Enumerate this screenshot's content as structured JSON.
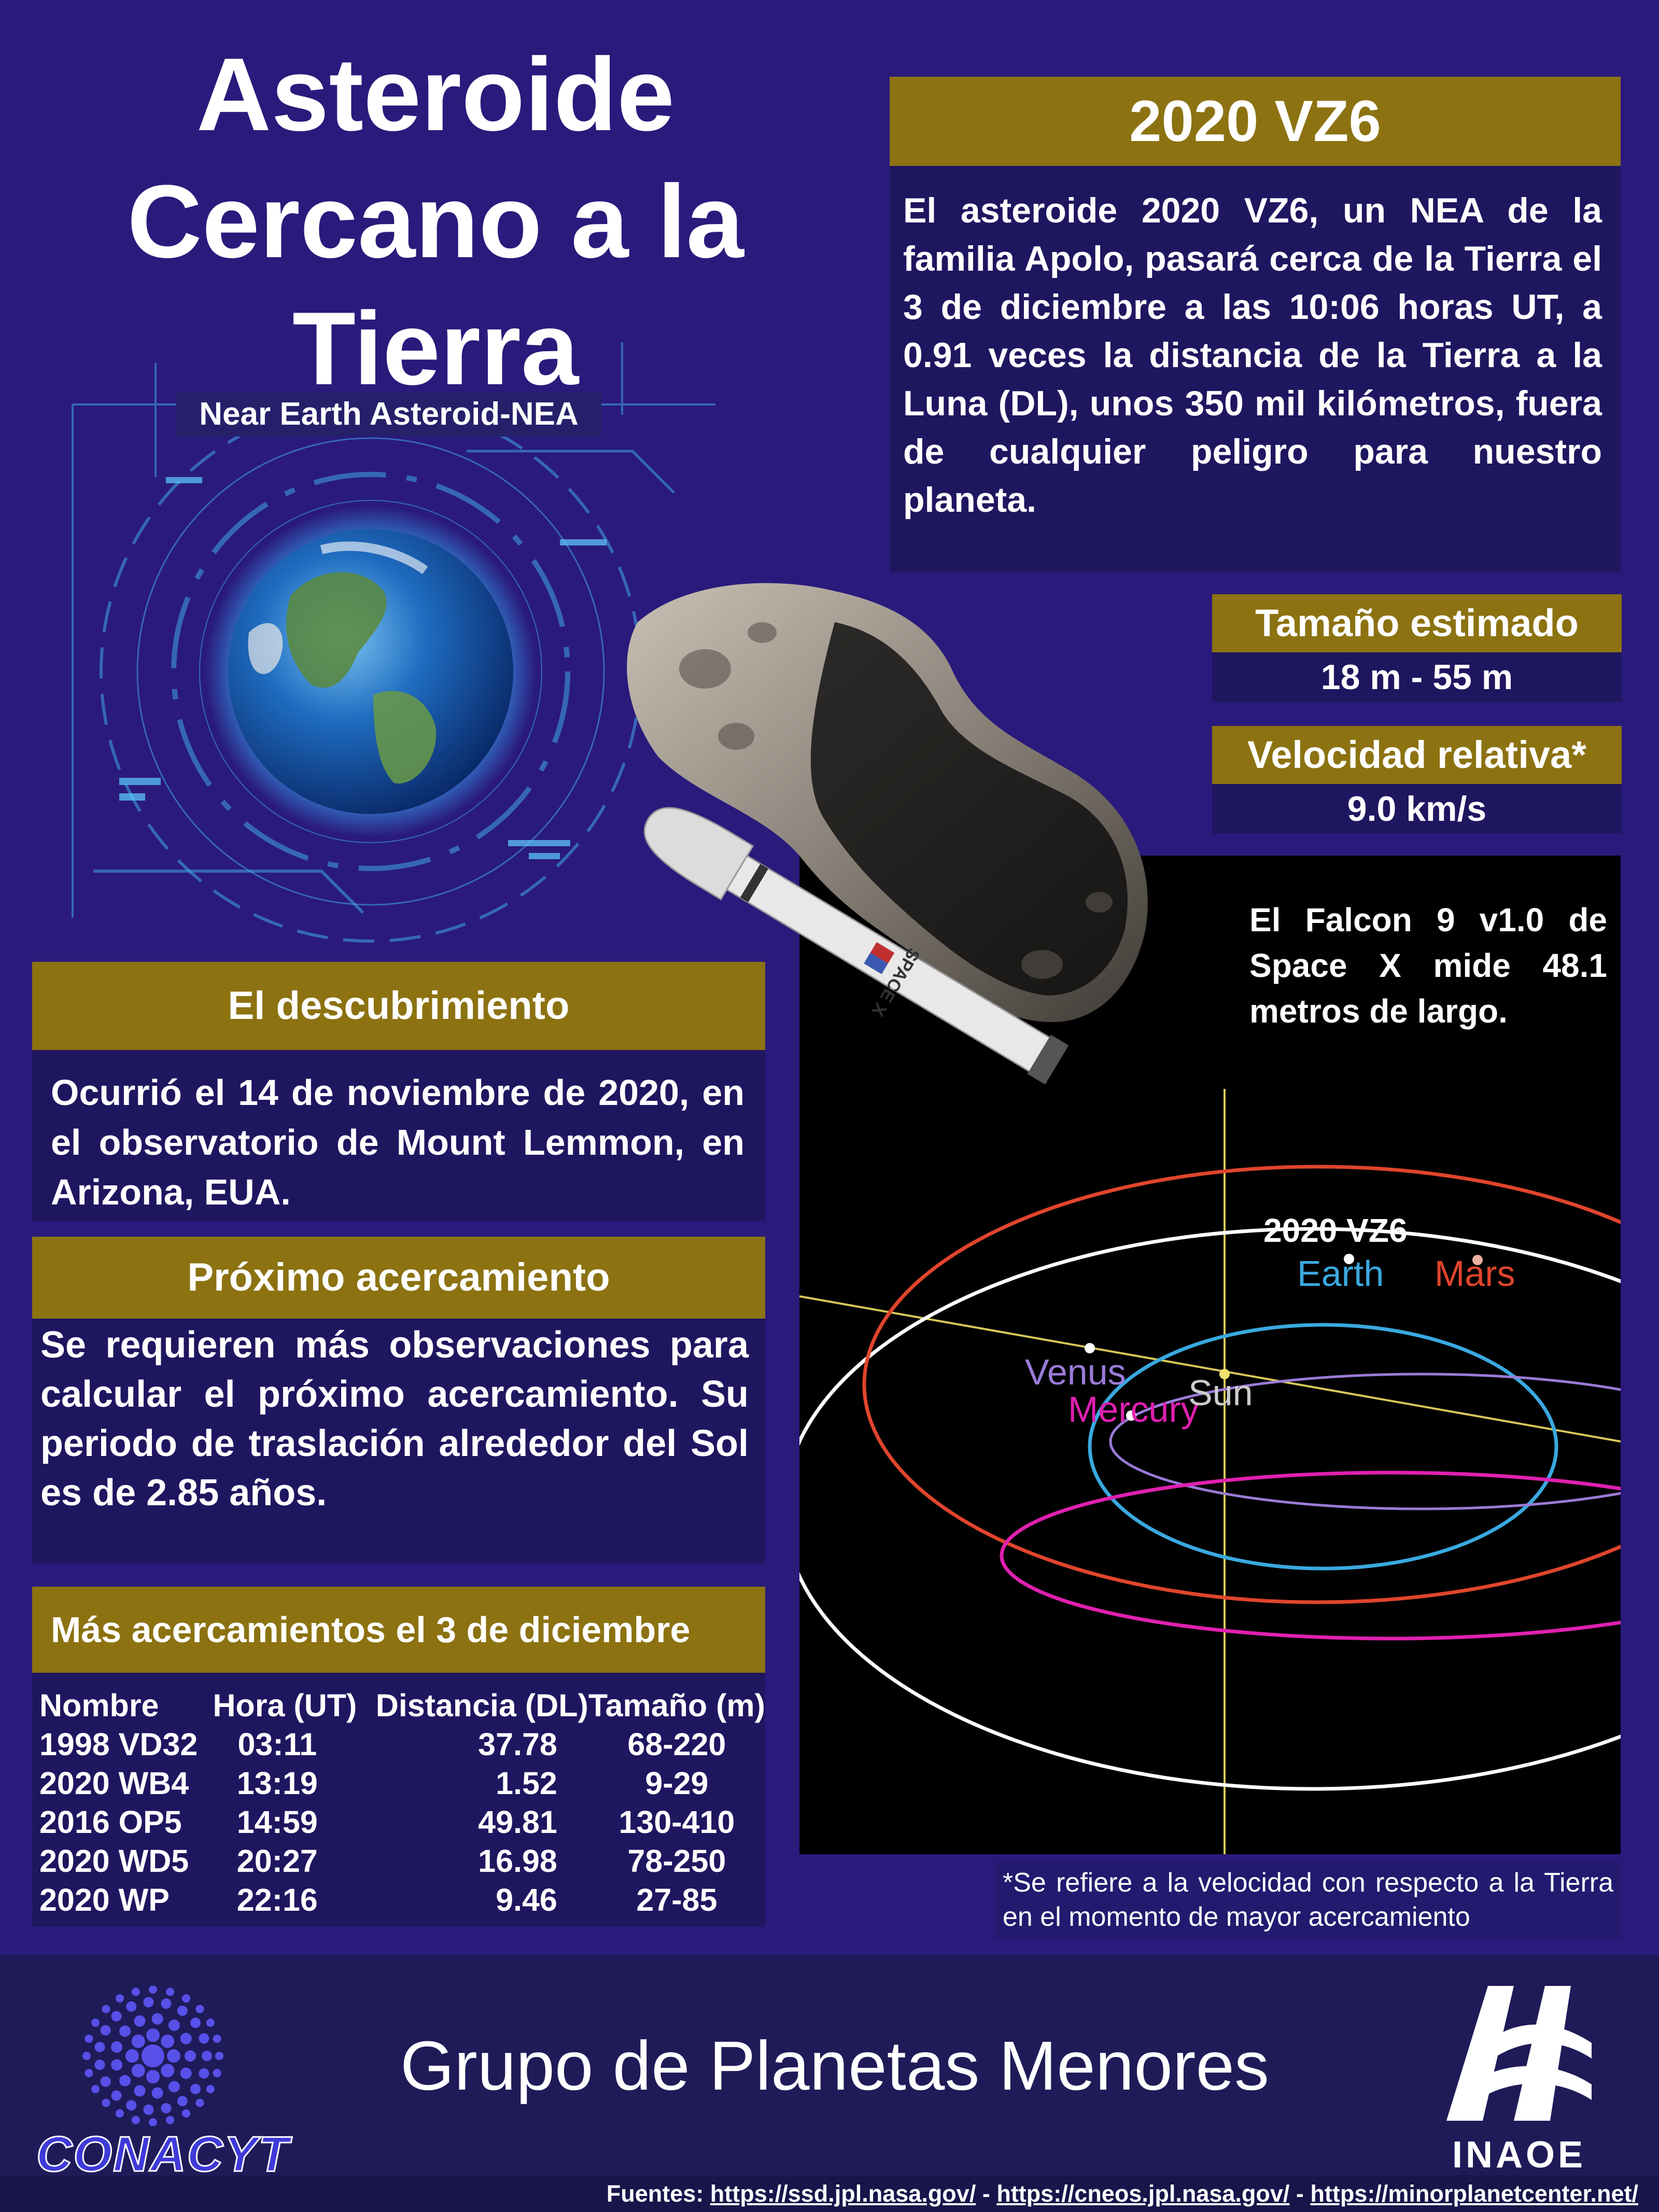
{
  "header": {
    "title_lines": [
      "Asteroide",
      "Cercano a la",
      "Tierra"
    ],
    "subtitle": "Near Earth Asteroid-NEA"
  },
  "asteroid_box": {
    "name": "2020 VZ6",
    "description": "El asteroide 2020 VZ6, un NEA de la familia Apolo, pasará cerca de la Tierra el 3 de diciembre a las 10:06 horas UT, a 0.91 veces la distancia de la Tierra a la Luna (DL), unos 350 mil kilómetros, fuera de cualquier peligro para nuestro planeta."
  },
  "size_box": {
    "label": "Tamaño estimado",
    "value": "18 m - 55 m"
  },
  "velocity_box": {
    "label": "Velocidad relativa*",
    "value": "9.0 km/s"
  },
  "falcon_note": "El Falcon 9 v1.0 de Space X mide 48.1 metros de largo.",
  "rocket_lettering": "SPACE X",
  "orbit_diagram": {
    "asteroid_label": "2020 VZ6",
    "earth_label": "Earth",
    "mars_label": "Mars",
    "venus_label": "Venus",
    "mercury_label": "Mercury",
    "sun_label": "Sun",
    "colors": {
      "asteroid": "#ffffff",
      "earth": "#3aa9e0",
      "mars": "#e0452c",
      "venus": "#9b7bd8",
      "mercury": "#e020b0",
      "axis": "#d8c85a"
    }
  },
  "discovery": {
    "title": "El descubrimiento",
    "text": "Ocurrió el 14 de noviembre de 2020, en el observatorio de Mount Lemmon, en Arizona, EUA."
  },
  "next_approach": {
    "title": "Próximo acercamiento",
    "text": "Se requieren más observaciones para calcular el próximo acercamiento. Su periodo de traslación alrededor del Sol es de 2.85 años."
  },
  "more_approaches": {
    "title": "Más acercamientos el 3 de diciembre",
    "columns": [
      "Nombre",
      "Hora (UT)",
      "Distancia (DL)",
      "Tamaño (m)"
    ],
    "rows": [
      [
        "1998 VD32",
        "03:11",
        "37.78",
        "68-220"
      ],
      [
        "2020 WB4",
        "13:19",
        "1.52",
        "9-29"
      ],
      [
        "2016 OP5",
        "14:59",
        "49.81",
        "130-410"
      ],
      [
        "2020 WD5",
        "20:27",
        "16.98",
        "78-250"
      ],
      [
        "2020 WP",
        "22:16",
        "9.46",
        "27-85"
      ]
    ]
  },
  "velocity_note": "*Se refiere a la velocidad con respecto a la Tierra en el momento de mayor acercamiento",
  "footer": {
    "group_name": "Grupo de Planetas Menores",
    "left_logo": "CONACYT",
    "right_logo": "INAOE",
    "sources_label": "Fuentes:",
    "sources": [
      "https://ssd.jpl.nasa.gov/",
      "https://cneos.jpl.nasa.gov/",
      "https://minorplanetcenter.net/"
    ],
    "separator": " - "
  },
  "icons": {
    "earth": "earth-globe-icon",
    "asteroid": "asteroid-illustration",
    "rocket": "falcon9-rocket-icon",
    "conacyt": "conacyt-logo-icon",
    "inaoe": "inaoe-logo-icon"
  }
}
